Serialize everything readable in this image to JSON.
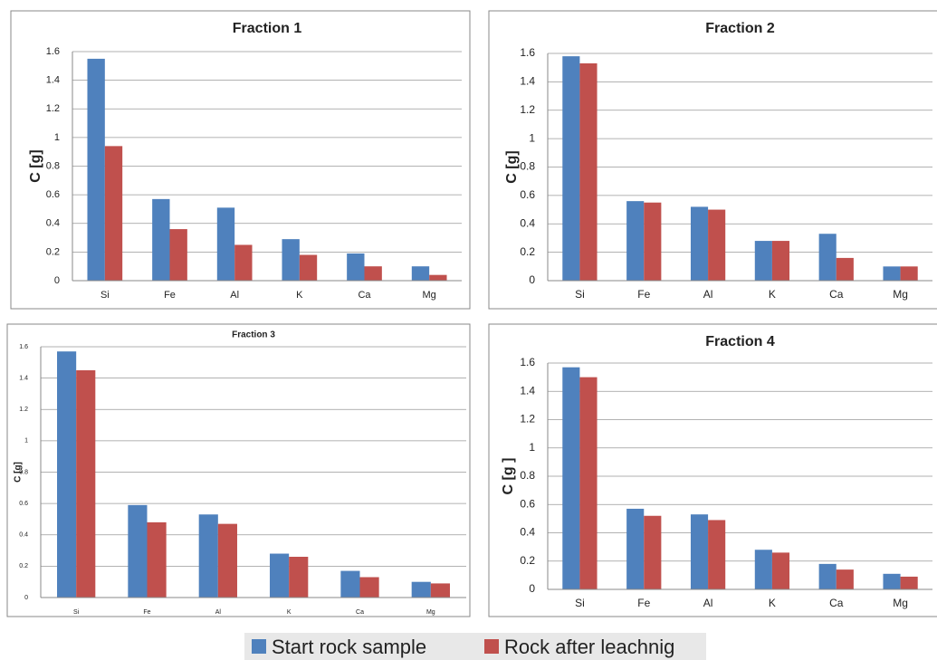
{
  "legend": [
    {
      "name": "Start rock sample",
      "color": "#4f81bd"
    },
    {
      "name": "Rock after leachnig",
      "color": "#c0504d"
    }
  ],
  "chart_data": [
    {
      "type": "bar",
      "title": "Fraction 1",
      "ylabel": "C [g]",
      "categories": [
        "Si",
        "Fe",
        "Al",
        "K",
        "Ca",
        "Mg"
      ],
      "series": [
        {
          "values": [
            1.55,
            0.57,
            0.51,
            0.29,
            0.19,
            0.1
          ]
        },
        {
          "values": [
            0.94,
            0.36,
            0.25,
            0.18,
            0.1,
            0.04
          ]
        }
      ],
      "ylim": [
        0,
        1.6
      ],
      "yticks": [
        0,
        0.2,
        0.4,
        0.6,
        0.8,
        1,
        1.2,
        1.4,
        1.6
      ],
      "grid": true
    },
    {
      "type": "bar",
      "title": "Fraction 2",
      "ylabel": "C [g]",
      "categories": [
        "Si",
        "Fe",
        "Al",
        "K",
        "Ca",
        "Mg"
      ],
      "series": [
        {
          "values": [
            1.58,
            0.56,
            0.52,
            0.28,
            0.33,
            0.1
          ]
        },
        {
          "values": [
            1.53,
            0.55,
            0.5,
            0.28,
            0.16,
            0.1
          ]
        }
      ],
      "ylim": [
        0,
        1.6
      ],
      "yticks": [
        0,
        0.2,
        0.4,
        0.6,
        0.8,
        1,
        1.2,
        1.4,
        1.6
      ],
      "grid": true
    },
    {
      "type": "bar",
      "title": "Fraction 3",
      "ylabel": "C [g]",
      "categories": [
        "Si",
        "Fe",
        "Al",
        "K",
        "Ca",
        "Mg"
      ],
      "series": [
        {
          "values": [
            1.57,
            0.59,
            0.53,
            0.28,
            0.17,
            0.1
          ]
        },
        {
          "values": [
            1.45,
            0.48,
            0.47,
            0.26,
            0.13,
            0.09
          ]
        }
      ],
      "ylim": [
        0,
        1.6
      ],
      "yticks": [
        0,
        0.2,
        0.4,
        0.6,
        0.8,
        1,
        1.2,
        1.4,
        1.6
      ],
      "grid": true
    },
    {
      "type": "bar",
      "title": "Fraction 4",
      "ylabel": "C [g ]",
      "categories": [
        "Si",
        "Fe",
        "Al",
        "K",
        "Ca",
        "Mg"
      ],
      "series": [
        {
          "values": [
            1.57,
            0.57,
            0.53,
            0.28,
            0.18,
            0.11
          ]
        },
        {
          "values": [
            1.5,
            0.52,
            0.49,
            0.26,
            0.14,
            0.09
          ]
        }
      ],
      "ylim": [
        0,
        1.6
      ],
      "yticks": [
        0,
        0.2,
        0.4,
        0.6,
        0.8,
        1,
        1.2,
        1.4,
        1.6
      ],
      "grid": true
    }
  ]
}
